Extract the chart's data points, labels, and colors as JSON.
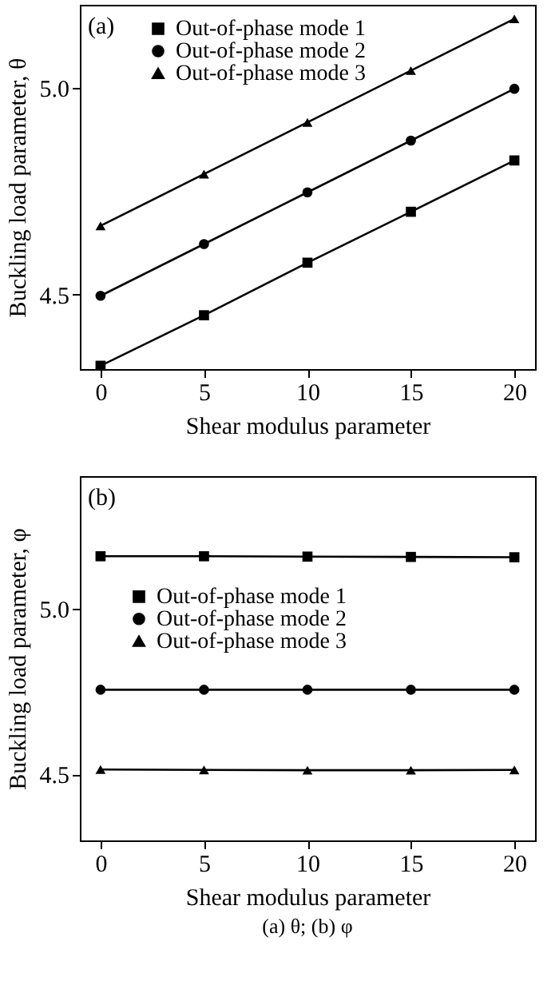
{
  "chart_data": [
    {
      "type": "line",
      "annotations": [
        "(a)"
      ],
      "xlabel": "Shear modulus parameter",
      "ylabel": "Buckling load parameter, θ",
      "x": [
        0,
        5,
        10,
        15,
        20
      ],
      "xlim": [
        -1,
        21
      ],
      "xticks": [
        0,
        5,
        10,
        15,
        20
      ],
      "ylim": [
        4.32,
        5.2
      ],
      "yticks": [
        4.5,
        {
          "value": 5,
          "label": "5.0"
        }
      ],
      "legend": "top left",
      "grid": false,
      "series": [
        {
          "name": "Out-of-phase mode 1",
          "color": "#000000",
          "marker": "square",
          "values": [
            4.328,
            4.45,
            4.577,
            4.7,
            4.824
          ]
        },
        {
          "name": "Out-of-phase mode 2",
          "color": "#000000",
          "marker": "circle",
          "values": [
            4.497,
            4.622,
            4.747,
            4.872,
            4.997
          ]
        },
        {
          "name": "Out-of-phase mode 3",
          "color": "#000000",
          "marker": "triangle",
          "values": [
            4.666,
            4.791,
            4.916,
            5.041,
            5.166
          ]
        }
      ]
    },
    {
      "type": "line",
      "annotations": [
        "(b)",
        "(a) θ; (b) φ"
      ],
      "xlabel": "Shear modulus parameter",
      "ylabel": "Buckling load parameter, φ",
      "x": [
        0,
        5,
        10,
        15,
        20
      ],
      "xlim": [
        -1,
        21
      ],
      "xticks": [
        0,
        5,
        10,
        15,
        20
      ],
      "ylim": [
        4.3,
        5.4
      ],
      "yticks": [
        4.5,
        {
          "value": 5,
          "label": "5.0"
        }
      ],
      "legend": "left",
      "grid": false,
      "series": [
        {
          "name": "Out-of-phase mode 1",
          "color": "#000000",
          "marker": "square",
          "values": [
            5.158,
            5.158,
            5.157,
            5.156,
            5.155
          ]
        },
        {
          "name": "Out-of-phase mode 2",
          "color": "#000000",
          "marker": "circle",
          "values": [
            4.755,
            4.755,
            4.755,
            4.755,
            4.755
          ]
        },
        {
          "name": "Out-of-phase mode 3",
          "color": "#000000",
          "marker": "triangle",
          "values": [
            4.514,
            4.513,
            4.512,
            4.512,
            4.513
          ]
        }
      ]
    }
  ]
}
